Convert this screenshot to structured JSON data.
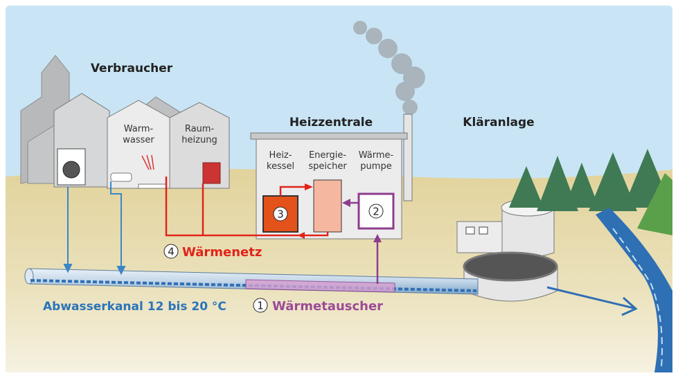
{
  "sections": {
    "consumers": "Verbraucher",
    "central": "Heizzentrale",
    "plant": "Kläranlage"
  },
  "consumers": [
    {
      "label": [
        "Warm-",
        "wasser"
      ]
    },
    {
      "label": [
        "Raum-",
        "heizung"
      ]
    }
  ],
  "central_units": [
    {
      "label": [
        "Heiz-",
        "kessel"
      ],
      "number": "3"
    },
    {
      "label": [
        "Energie-",
        "speicher"
      ]
    },
    {
      "label": [
        "Wärme-",
        "pumpe"
      ],
      "number": "2"
    }
  ],
  "legend": [
    {
      "number": "4",
      "label": "Wärmenetz"
    },
    {
      "number": "1",
      "label": "Wärmetauscher"
    }
  ],
  "sewer": "Abwasserkanal 12 bis 20 °C"
}
